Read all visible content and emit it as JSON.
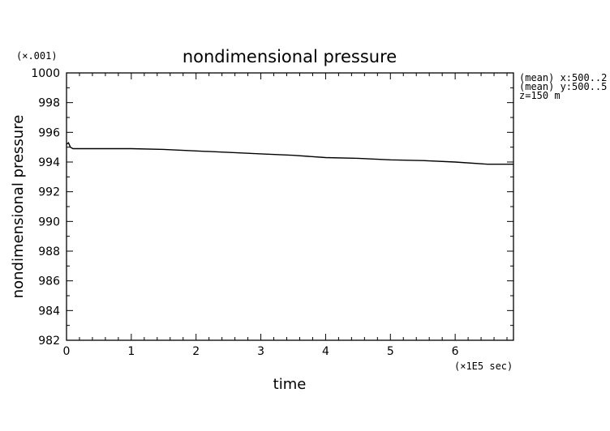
{
  "chart_data": {
    "type": "line",
    "title": "nondimensional pressure",
    "xlabel": "time",
    "ylabel": "nondimensional pressure",
    "x_unit_label": "(×1E5 sec)",
    "y_scale_label": "(×.001)",
    "xlim": [
      0,
      6.9
    ],
    "ylim": [
      982,
      1000
    ],
    "x_ticks": [
      0,
      1,
      2,
      3,
      4,
      5,
      6
    ],
    "y_ticks": [
      982,
      984,
      986,
      988,
      990,
      992,
      994,
      996,
      998,
      1000
    ],
    "grid": false,
    "annotations": [
      "(mean) x:500..2",
      "(mean) y:500..5",
      "z=150 m"
    ],
    "series": [
      {
        "x": [
          0,
          0.03,
          0.06,
          0.1,
          0.2,
          0.5,
          1.0,
          1.5,
          2.0,
          2.5,
          3.0,
          3.5,
          4.0,
          4.5,
          5.0,
          5.5,
          6.0,
          6.5,
          6.9
        ],
        "y": [
          995.2,
          995.3,
          995.0,
          994.9,
          994.9,
          994.9,
          994.9,
          994.85,
          994.75,
          994.65,
          994.55,
          994.45,
          994.3,
          994.25,
          994.15,
          994.1,
          994.0,
          993.85,
          993.85
        ]
      }
    ]
  }
}
